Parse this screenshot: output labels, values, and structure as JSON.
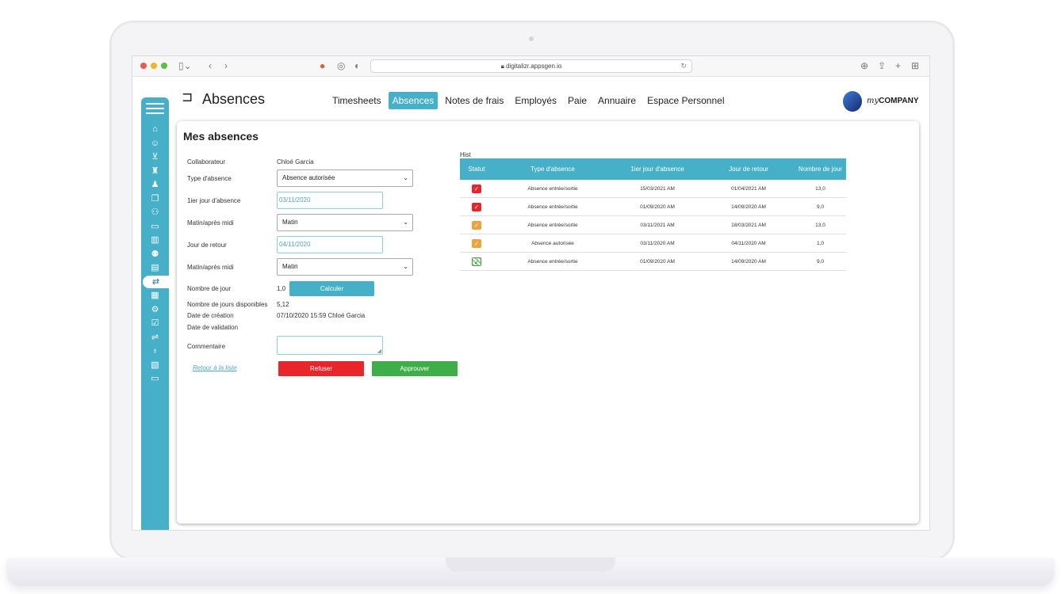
{
  "browser": {
    "url": "digitalizr.appsgen.io",
    "dots": [
      "#ee5a52",
      "#f0b429",
      "#5dbf40"
    ]
  },
  "app": {
    "title": "Absences",
    "nav": [
      {
        "label": "Timesheets",
        "active": false
      },
      {
        "label": "Absences",
        "active": true
      },
      {
        "label": "Notes de frais",
        "active": false
      },
      {
        "label": "Employés",
        "active": false
      },
      {
        "label": "Paie",
        "active": false
      },
      {
        "label": "Annuaire",
        "active": false
      },
      {
        "label": "Espace Personnel",
        "active": false
      }
    ],
    "logo": {
      "script": "my",
      "name": "COMPANY"
    },
    "accent": "#45b0c7"
  },
  "sidebar": {
    "icons": [
      "home-icon",
      "user-money-icon",
      "cart-icon",
      "org-chart-icon",
      "users-icon",
      "documents-icon",
      "team-icon",
      "card-icon",
      "buildings-icon",
      "person-coins-icon",
      "invoice-icon",
      "absence-icon",
      "calendar-icon",
      "settings-user-icon",
      "calendar-check-icon",
      "transfer-icon",
      "money-bag-icon",
      "report-icon",
      "monitor-icon"
    ],
    "active_index": 11
  },
  "form": {
    "title": "Mes absences",
    "labels": {
      "collaborateur": "Collaborateur",
      "type": "Type d'absence",
      "first_day": "1ier jour d'absence",
      "period1": "Matin/après midi",
      "return_day": "Jour de retour",
      "period2": "Matin/après midi",
      "nb_days": "Nombre de jour",
      "nb_available": "Nombre de jours disponibles",
      "creation": "Date de création",
      "validation": "Date de validation",
      "comment": "Commentaire"
    },
    "values": {
      "collaborateur": "Chloé Garcia",
      "type": "Absence autorisée",
      "first_day": "03/11/2020",
      "period1": "Matin",
      "return_day": "04/11/2020",
      "period2": "Matin",
      "nb_days": "1,0",
      "nb_available": "5,12",
      "creation": "07/10/2020 15:59 Chloé Garcia",
      "validation": ""
    },
    "buttons": {
      "calc": "Calculer",
      "back": "Retour à la liste",
      "refuse": "Refuser",
      "approve": "Approuver"
    }
  },
  "history": {
    "label": "Hist",
    "headers": [
      "Statut",
      "Type d'absence",
      "1ier jour d'absence",
      "Jour de retour",
      "Nombre de jour"
    ],
    "rows": [
      {
        "status": "refused",
        "type": "Absence entrée/sortie",
        "first": "15/03/2021 AM",
        "return": "01/04/2021 AM",
        "days": "13,0"
      },
      {
        "status": "refused",
        "type": "Absence entrée/sortie",
        "first": "01/09/2020 AM",
        "return": "14/09/2020 AM",
        "days": "9,0"
      },
      {
        "status": "pending",
        "type": "Absence entrée/sortie",
        "first": "03/11/2021 AM",
        "return": "18/03/2021 AM",
        "days": "13,0"
      },
      {
        "status": "pending",
        "type": "Absence autorisée",
        "first": "03/11/2020 AM",
        "return": "04/11/2020 AM",
        "days": "1,0"
      },
      {
        "status": "approved",
        "type": "Absence entrée/sortie",
        "first": "01/09/2020 AM",
        "return": "14/09/2020 AM",
        "days": "9,0"
      }
    ],
    "status_colors": {
      "refused": "#e8252a",
      "pending": "#f0a13a",
      "approved": "#8fcf8a"
    }
  }
}
